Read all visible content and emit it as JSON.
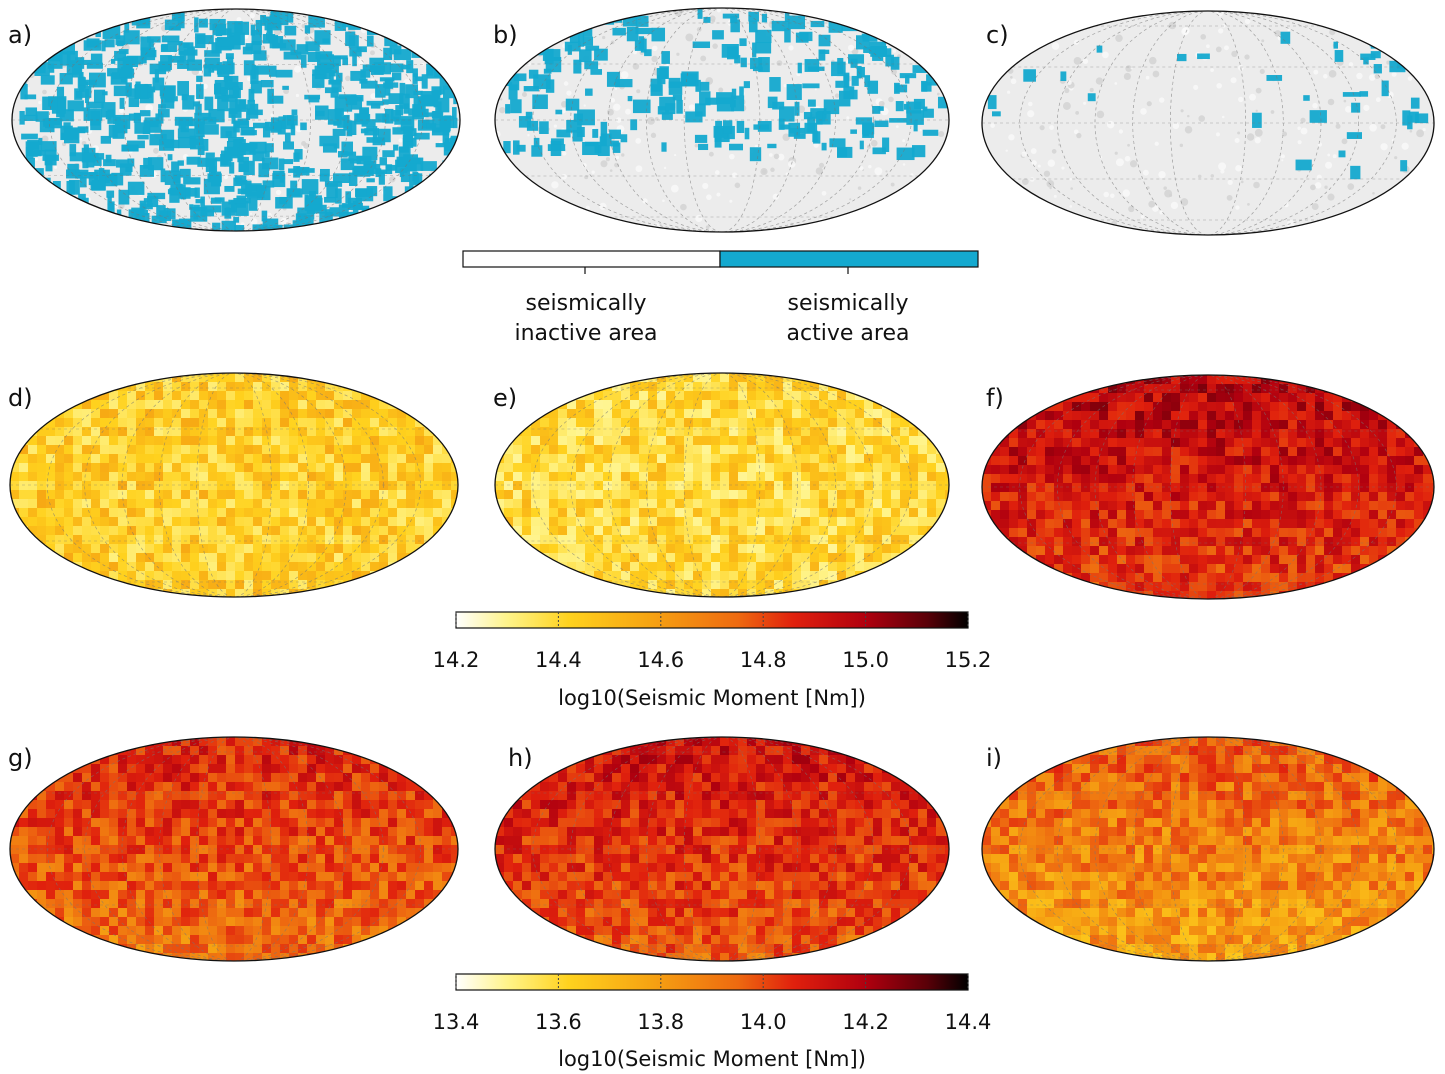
{
  "panels": [
    {
      "label": "a)",
      "scheme": "binary",
      "activity": "high"
    },
    {
      "label": "b)",
      "scheme": "binary",
      "activity": "medium"
    },
    {
      "label": "c)",
      "scheme": "binary",
      "activity": "low"
    },
    {
      "label": "d)",
      "scheme": "heat",
      "level": 0.25
    },
    {
      "label": "e)",
      "scheme": "heat",
      "level": 0.22
    },
    {
      "label": "f)",
      "scheme": "heat",
      "level": 0.65
    },
    {
      "label": "g)",
      "scheme": "heat",
      "level": 0.55
    },
    {
      "label": "h)",
      "scheme": "heat",
      "level": 0.6
    },
    {
      "label": "i)",
      "scheme": "heat",
      "level": 0.45
    }
  ],
  "binary_legend": {
    "inactive": {
      "line1": "seismically",
      "line2": "inactive area"
    },
    "active": {
      "line1": "seismically",
      "line2": "active area"
    },
    "colors": {
      "inactive": "#ffffff",
      "active": "#14a9cf"
    }
  },
  "colorbar1": {
    "ticks": [
      "14.2",
      "14.4",
      "14.6",
      "14.8",
      "15.0",
      "15.2"
    ],
    "title": "log10(Seismic Moment [Nm])"
  },
  "colorbar2": {
    "ticks": [
      "13.4",
      "13.6",
      "13.8",
      "14.0",
      "14.2",
      "14.4"
    ],
    "title": "log10(Seismic Moment [Nm])"
  },
  "colors": {
    "heat_scale": [
      "#ffffff",
      "#fff48a",
      "#ffd21e",
      "#f6a312",
      "#ee6a10",
      "#e0200d",
      "#b0000f",
      "#5a0008",
      "#000000"
    ],
    "active_blue": "#14a9cf",
    "map_gray": "#e4e4e4"
  }
}
